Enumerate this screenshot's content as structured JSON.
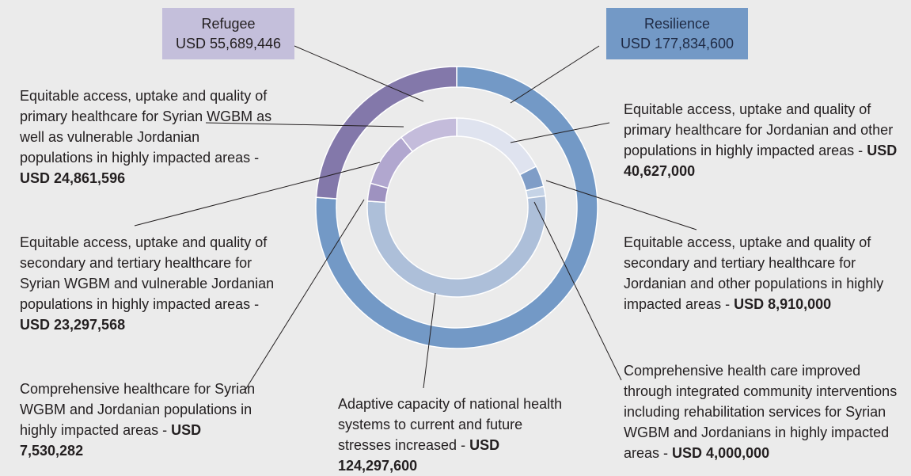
{
  "chart_data": {
    "type": "nested-donut",
    "rings": [
      {
        "categories": [
          "Resilience",
          "Refugee"
        ],
        "values": [
          177834600,
          55689446
        ],
        "value_labels": [
          "USD 177,834,600",
          "USD 55,689,446"
        ],
        "colors": [
          "#7399c6",
          "#8378aa"
        ],
        "box_colors": [
          "#7399c6",
          "#c4bfdb"
        ]
      },
      {
        "categories": [
          "Equitable access, uptake and quality of primary healthcare for Jordanian and other populations in highly impacted areas -",
          "Equitable access, uptake and quality of secondary and tertiary healthcare for Jordanian and other populations in highly impacted areas -",
          "Comprehensive health care improved through integrated community interventions including rehabilitation services for Syrian WGBM and Jordanians in highly impacted areas -",
          "Adaptive capacity of national health systems to current and future stresses increased -",
          "Comprehensive healthcare for Syrian WGBM and Jordanian populations in highly impacted areas -",
          "Equitable access, uptake and quality of secondary and tertiary healthcare for Syrian WGBM and vulnerable Jordanian populations in highly impacted areas -",
          "Equitable access, uptake and quality of primary healthcare for Syrian WGBM as well as vulnerable Jordanian populations in highly impacted areas -"
        ],
        "values": [
          40627000,
          8910000,
          4000000,
          124297600,
          7530282,
          23297568,
          24861596
        ],
        "value_labels": [
          "USD 40,627,000",
          "USD 8,910,000",
          "USD 4,000,000",
          "USD 124,297,600",
          "USD 7,530,282",
          "USD 23,297,568",
          "USD 24,861,596"
        ],
        "colors": [
          "#dfe3ef",
          "#7f9dc7",
          "#c5d3e6",
          "#adbfd9",
          "#9e92c0",
          "#b1a7cf",
          "#c4bcdb"
        ]
      }
    ]
  }
}
